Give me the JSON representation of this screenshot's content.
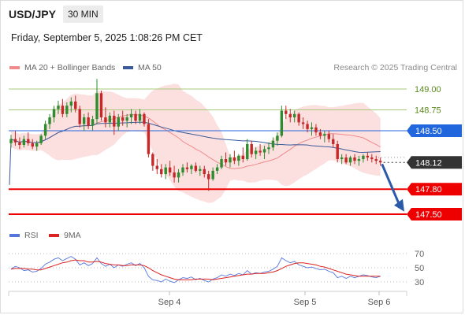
{
  "header": {
    "pair": "USD/JPY",
    "timeframe": "30 MIN",
    "datetime": "Friday, September 5, 2025 1:08:26 PM CET",
    "credit": "Research © 2025 Trading Central"
  },
  "legend": {
    "ma20": "MA 20 + Bollinger Bands",
    "ma50": "MA 50",
    "rsi": "RSI",
    "rsi_ma": "9MA"
  },
  "colors": {
    "up": "#2e8b2e",
    "down": "#c62828",
    "ma20": "#f08b8b",
    "band": "#fbdada",
    "ma50": "#3a5a99",
    "resistance": "#a8c87a",
    "pivot": "#2266dd",
    "support": "#ee0000",
    "last": "#333333",
    "arrow": "#2a5aa8",
    "rsi": "#5577dd",
    "rsi_ma": "#dd2222"
  },
  "chart_data": [
    {
      "type": "candlestick",
      "title": "USD/JPY",
      "ylim": [
        147.4,
        149.2
      ],
      "x_ticks": [
        "Sep 4",
        "Sep 5",
        "Sep 6"
      ],
      "levels": [
        {
          "value": 149.0,
          "label": "149.00",
          "kind": "resistance"
        },
        {
          "value": 148.75,
          "label": "148.75",
          "kind": "resistance"
        },
        {
          "value": 148.5,
          "label": "148.50",
          "kind": "pivot"
        },
        {
          "value": 148.12,
          "label": "148.12",
          "kind": "last"
        },
        {
          "value": 147.8,
          "label": "147.80",
          "kind": "support"
        },
        {
          "value": 147.5,
          "label": "147.50",
          "kind": "support"
        }
      ],
      "ohlc": [
        [
          148.35,
          148.45,
          148.3,
          148.4
        ],
        [
          148.4,
          148.5,
          148.32,
          148.36
        ],
        [
          148.36,
          148.42,
          148.28,
          148.33
        ],
        [
          148.33,
          148.44,
          148.3,
          148.4
        ],
        [
          148.4,
          148.48,
          148.32,
          148.35
        ],
        [
          148.35,
          148.4,
          148.28,
          148.31
        ],
        [
          148.31,
          148.38,
          148.26,
          148.35
        ],
        [
          148.35,
          148.46,
          148.33,
          148.44
        ],
        [
          148.44,
          148.62,
          148.4,
          148.58
        ],
        [
          148.58,
          148.7,
          148.52,
          148.66
        ],
        [
          148.66,
          148.8,
          148.6,
          148.76
        ],
        [
          148.76,
          148.86,
          148.7,
          148.8
        ],
        [
          148.8,
          148.88,
          148.66,
          148.7
        ],
        [
          148.7,
          148.84,
          148.66,
          148.8
        ],
        [
          148.8,
          148.9,
          148.72,
          148.85
        ],
        [
          148.85,
          148.92,
          148.72,
          148.76
        ],
        [
          148.76,
          148.8,
          148.54,
          148.58
        ],
        [
          148.58,
          148.7,
          148.5,
          148.66
        ],
        [
          148.66,
          148.72,
          148.52,
          148.56
        ],
        [
          148.56,
          148.68,
          148.5,
          148.64
        ],
        [
          148.64,
          149.12,
          148.58,
          148.95
        ],
        [
          148.95,
          148.98,
          148.62,
          148.66
        ],
        [
          148.66,
          148.78,
          148.54,
          148.6
        ],
        [
          148.6,
          148.72,
          148.54,
          148.68
        ],
        [
          148.68,
          148.74,
          148.45,
          148.55
        ],
        [
          148.55,
          148.7,
          148.5,
          148.66
        ],
        [
          148.66,
          148.74,
          148.56,
          148.62
        ],
        [
          148.62,
          148.7,
          148.54,
          148.66
        ],
        [
          148.66,
          148.76,
          148.58,
          148.7
        ],
        [
          148.7,
          148.74,
          148.58,
          148.62
        ],
        [
          148.62,
          148.76,
          148.58,
          148.7
        ],
        [
          148.7,
          148.72,
          148.55,
          148.58
        ],
        [
          148.58,
          148.64,
          148.18,
          148.22
        ],
        [
          148.22,
          148.24,
          148.02,
          148.08
        ],
        [
          148.08,
          148.16,
          147.98,
          148.04
        ],
        [
          148.04,
          148.1,
          147.94,
          147.98
        ],
        [
          147.98,
          148.1,
          147.92,
          148.06
        ],
        [
          148.06,
          148.14,
          147.96,
          148.0
        ],
        [
          148.0,
          148.08,
          147.88,
          147.94
        ],
        [
          147.94,
          148.04,
          147.88,
          148.0
        ],
        [
          148.0,
          148.1,
          147.96,
          148.06
        ],
        [
          148.06,
          148.12,
          148.0,
          148.04
        ],
        [
          148.04,
          148.1,
          147.98,
          148.08
        ],
        [
          148.08,
          148.12,
          148.0,
          148.02
        ],
        [
          148.02,
          148.08,
          147.96,
          148.04
        ],
        [
          148.04,
          148.08,
          147.94,
          147.98
        ],
        [
          147.98,
          148.02,
          147.78,
          147.92
        ],
        [
          147.92,
          148.06,
          147.9,
          148.02
        ],
        [
          148.02,
          148.1,
          147.98,
          148.06
        ],
        [
          148.06,
          148.2,
          148.04,
          148.16
        ],
        [
          148.16,
          148.24,
          148.08,
          148.12
        ],
        [
          148.12,
          148.22,
          148.06,
          148.18
        ],
        [
          148.18,
          148.26,
          148.1,
          148.14
        ],
        [
          148.14,
          148.22,
          148.08,
          148.2
        ],
        [
          148.2,
          148.3,
          148.12,
          148.16
        ],
        [
          148.16,
          148.4,
          148.14,
          148.34
        ],
        [
          148.34,
          148.38,
          148.18,
          148.22
        ],
        [
          148.22,
          148.3,
          148.16,
          148.26
        ],
        [
          148.26,
          148.34,
          148.2,
          148.24
        ],
        [
          148.24,
          148.32,
          148.16,
          148.28
        ],
        [
          148.28,
          148.36,
          148.22,
          148.3
        ],
        [
          148.3,
          148.42,
          148.26,
          148.38
        ],
        [
          148.38,
          148.48,
          148.32,
          148.44
        ],
        [
          148.44,
          148.8,
          148.42,
          148.74
        ],
        [
          148.74,
          148.8,
          148.64,
          148.7
        ],
        [
          148.7,
          148.76,
          148.6,
          148.66
        ],
        [
          148.66,
          148.74,
          148.6,
          148.7
        ],
        [
          148.7,
          148.72,
          148.56,
          148.6
        ],
        [
          148.6,
          148.66,
          148.52,
          148.58
        ],
        [
          148.58,
          148.62,
          148.48,
          148.52
        ],
        [
          148.52,
          148.6,
          148.44,
          148.54
        ],
        [
          148.54,
          148.58,
          148.44,
          148.48
        ],
        [
          148.48,
          148.52,
          148.4,
          148.44
        ],
        [
          148.44,
          148.5,
          148.36,
          148.46
        ],
        [
          148.46,
          148.5,
          148.36,
          148.4
        ],
        [
          148.4,
          148.46,
          148.3,
          148.34
        ],
        [
          148.34,
          148.38,
          148.12,
          148.16
        ],
        [
          148.16,
          148.22,
          148.1,
          148.18
        ],
        [
          148.18,
          148.22,
          148.1,
          148.12
        ],
        [
          148.12,
          148.2,
          148.08,
          148.18
        ],
        [
          148.18,
          148.22,
          148.1,
          148.14
        ],
        [
          148.14,
          148.2,
          148.08,
          148.16
        ],
        [
          148.16,
          148.22,
          148.12,
          148.2
        ],
        [
          148.2,
          148.24,
          148.14,
          148.18
        ],
        [
          148.18,
          148.22,
          148.12,
          148.16
        ],
        [
          148.16,
          148.2,
          148.1,
          148.14
        ],
        [
          148.14,
          148.18,
          148.08,
          148.12
        ]
      ]
    },
    {
      "type": "line",
      "title": "RSI",
      "ylim": [
        25,
        75
      ],
      "y_ticks": [
        70,
        50,
        30
      ],
      "series": [
        {
          "name": "RSI",
          "values": [
            48,
            52,
            50,
            46,
            47,
            44,
            45,
            49,
            55,
            58,
            62,
            64,
            60,
            63,
            66,
            62,
            54,
            57,
            53,
            56,
            64,
            56,
            52,
            55,
            50,
            54,
            52,
            55,
            57,
            53,
            56,
            50,
            38,
            33,
            32,
            30,
            34,
            31,
            29,
            33,
            36,
            35,
            37,
            33,
            35,
            32,
            30,
            34,
            36,
            40,
            38,
            41,
            39,
            42,
            40,
            46,
            41,
            43,
            42,
            44,
            45,
            48,
            52,
            64,
            60,
            57,
            59,
            54,
            52,
            50,
            51,
            49,
            47,
            48,
            45,
            43,
            36,
            38,
            35,
            38,
            36,
            38,
            40,
            39,
            37,
            36,
            38
          ]
        },
        {
          "name": "9MA",
          "values": [
            48,
            49,
            49,
            49,
            48,
            48,
            47,
            47,
            49,
            51,
            53,
            55,
            57,
            58,
            60,
            61,
            60,
            60,
            58,
            58,
            59,
            58,
            56,
            55,
            54,
            54,
            53,
            53,
            54,
            54,
            54,
            53,
            50,
            46,
            43,
            40,
            38,
            36,
            34,
            33,
            33,
            33,
            33,
            34,
            34,
            34,
            34,
            33,
            34,
            35,
            36,
            37,
            38,
            39,
            40,
            41,
            41,
            42,
            42,
            42,
            43,
            44,
            46,
            49,
            52,
            54,
            56,
            57,
            57,
            56,
            55,
            54,
            52,
            51,
            49,
            47,
            45,
            43,
            41,
            40,
            39,
            38,
            38,
            38,
            38,
            38,
            38
          ]
        }
      ]
    }
  ]
}
